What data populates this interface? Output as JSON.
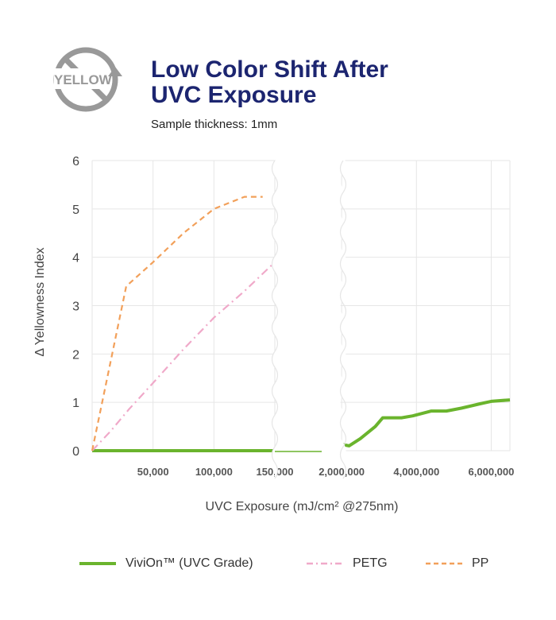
{
  "header": {
    "logo_text": "YELLOW",
    "title_line1": "Low Color Shift After",
    "title_line2": "UVC Exposure",
    "subtitle": "Sample thickness: 1mm"
  },
  "colors": {
    "vivion": "#6ab42d",
    "petg": "#f0a9c9",
    "pp": "#f2a05a",
    "title": "#1c2570",
    "grid": "#e6e6e6",
    "logo": "#999999"
  },
  "legend": {
    "vivion_label": "ViviOn™ (UVC Grade)",
    "petg_label": "PETG",
    "pp_label": "PP"
  },
  "chart_data": {
    "type": "line",
    "xlabel": "UVC Exposure (mJ/cm² @275nm)",
    "ylabel": "Δ Yellowness Index",
    "ylim": [
      0,
      6
    ],
    "yticks": [
      0,
      1,
      2,
      3,
      4,
      5,
      6
    ],
    "x_scale": "broken axis",
    "segment1": {
      "xlim": [
        0,
        150000
      ],
      "xticks": [
        50000,
        100000,
        150000
      ],
      "xtick_labels": [
        "50,000",
        "100,000",
        "150,000"
      ]
    },
    "segment2": {
      "xlim": [
        1700000,
        6500000
      ],
      "xticks": [
        2000000,
        4000000,
        6000000
      ],
      "xtick_labels": [
        "2,000,000",
        "4,000,000",
        "6,000,000"
      ]
    },
    "grid": true,
    "legend_position": "bottom",
    "series": [
      {
        "name": "ViviOn™ (UVC Grade)",
        "style": "solid",
        "points": [
          {
            "x": 0,
            "y": 0
          },
          {
            "x": 150000,
            "y": 0
          },
          {
            "x": 2000000,
            "y": 0.13
          },
          {
            "x": 2200000,
            "y": 0.1
          },
          {
            "x": 2500000,
            "y": 0.25
          },
          {
            "x": 2900000,
            "y": 0.5
          },
          {
            "x": 3100000,
            "y": 0.68
          },
          {
            "x": 3600000,
            "y": 0.68
          },
          {
            "x": 3900000,
            "y": 0.72
          },
          {
            "x": 4400000,
            "y": 0.82
          },
          {
            "x": 4800000,
            "y": 0.82
          },
          {
            "x": 5200000,
            "y": 0.88
          },
          {
            "x": 5700000,
            "y": 0.97
          },
          {
            "x": 6000000,
            "y": 1.02
          },
          {
            "x": 6500000,
            "y": 1.05
          }
        ]
      },
      {
        "name": "PETG",
        "style": "dash-dot",
        "points": [
          {
            "x": 0,
            "y": 0
          },
          {
            "x": 15000,
            "y": 0.4
          },
          {
            "x": 30000,
            "y": 0.85
          },
          {
            "x": 50000,
            "y": 1.4
          },
          {
            "x": 75000,
            "y": 2.1
          },
          {
            "x": 100000,
            "y": 2.75
          },
          {
            "x": 125000,
            "y": 3.3
          },
          {
            "x": 150000,
            "y": 3.9
          }
        ]
      },
      {
        "name": "PP",
        "style": "dashed",
        "points": [
          {
            "x": 0,
            "y": 0
          },
          {
            "x": 28000,
            "y": 3.4
          },
          {
            "x": 50000,
            "y": 3.9
          },
          {
            "x": 75000,
            "y": 4.5
          },
          {
            "x": 100000,
            "y": 5.0
          },
          {
            "x": 125000,
            "y": 5.25
          },
          {
            "x": 140000,
            "y": 5.25
          }
        ]
      }
    ]
  }
}
